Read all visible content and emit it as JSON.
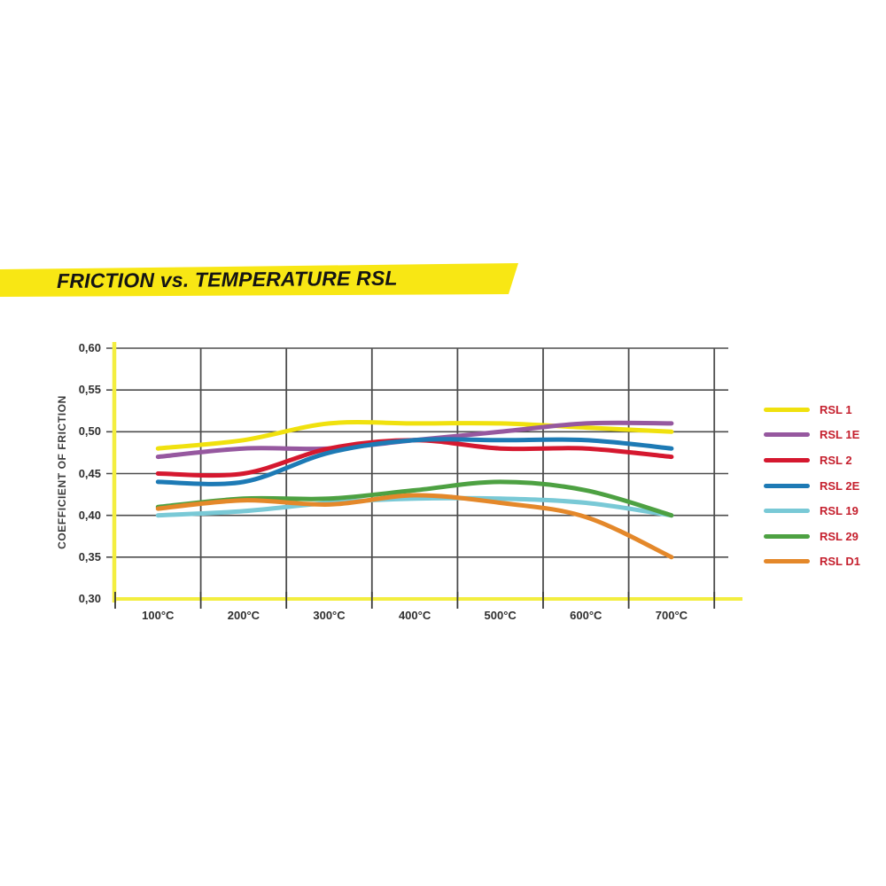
{
  "banner": {
    "title": "FRICTION vs. TEMPERATURE RSL",
    "background_color": "#f8e714",
    "text_color": "#141414"
  },
  "chart_data": {
    "type": "line",
    "title": "FRICTION vs. TEMPERATURE RSL",
    "xlabel": "",
    "ylabel": "COEFFICIENT OF FRICTION",
    "x_tick_labels": [
      "100°C",
      "200°C",
      "300°C",
      "400°C",
      "500°C",
      "600°C",
      "700°C"
    ],
    "x_values_celsius": [
      100,
      200,
      300,
      400,
      500,
      600,
      700
    ],
    "y_tick_labels": [
      "0,60",
      "0,55",
      "0,50",
      "0,45",
      "0,40",
      "0,35",
      "0,30"
    ],
    "y_tick_values": [
      0.6,
      0.55,
      0.5,
      0.45,
      0.4,
      0.35,
      0.3
    ],
    "ylim": [
      0.3,
      0.6
    ],
    "grid": true,
    "axis_color": "#f3ee3f",
    "grid_color": "#4d4d4d",
    "tick_color": "#3a3a3a",
    "legend_position": "right",
    "legend_text_color": "#c5202e",
    "series": [
      {
        "name": "RSL 1",
        "color": "#f0e10e",
        "values": [
          0.48,
          0.49,
          0.51,
          0.51,
          0.51,
          0.505,
          0.5
        ]
      },
      {
        "name": "RSL 1E",
        "color": "#96589f",
        "values": [
          0.47,
          0.48,
          0.48,
          0.49,
          0.5,
          0.51,
          0.51
        ]
      },
      {
        "name": "RSL 2",
        "color": "#d5182f",
        "values": [
          0.45,
          0.45,
          0.48,
          0.49,
          0.48,
          0.48,
          0.47
        ]
      },
      {
        "name": "RSL 2E",
        "color": "#1d7ab5",
        "values": [
          0.44,
          0.44,
          0.475,
          0.49,
          0.49,
          0.49,
          0.48
        ]
      },
      {
        "name": "RSL 19",
        "color": "#79c9d6",
        "values": [
          0.4,
          0.405,
          0.415,
          0.42,
          0.42,
          0.415,
          0.4
        ]
      },
      {
        "name": "RSL 29",
        "color": "#4da142",
        "values": [
          0.41,
          0.42,
          0.42,
          0.43,
          0.44,
          0.43,
          0.4
        ]
      },
      {
        "name": "RSL D1",
        "color": "#e4882a",
        "values": [
          0.408,
          0.418,
          0.413,
          0.424,
          0.415,
          0.398,
          0.35
        ]
      }
    ]
  }
}
